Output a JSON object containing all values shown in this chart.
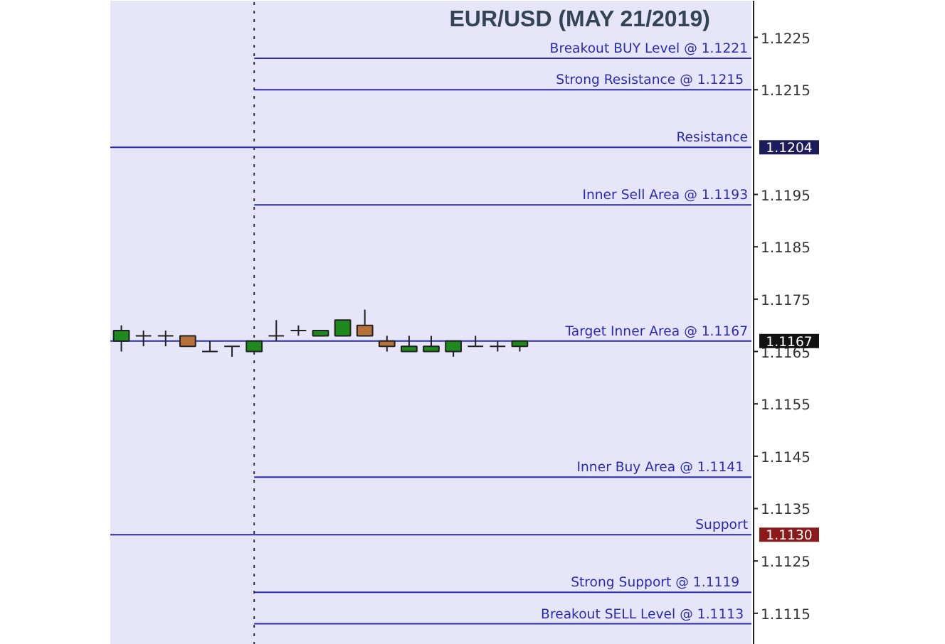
{
  "chart_data": {
    "type": "candlestick",
    "title": "EUR/USD (MAY 21/2019)",
    "categories": [
      null,
      null,
      null,
      null,
      null,
      null,
      null,
      null,
      null,
      null,
      null,
      null,
      null,
      null,
      null,
      null,
      null,
      null,
      null,
      null,
      null,
      null,
      null,
      null,
      null,
      null,
      null,
      null,
      null
    ],
    "ohlc": [
      [
        1.1167,
        1.117,
        1.1165,
        1.1169
      ],
      [
        1.1168,
        1.1169,
        1.1166,
        1.1168
      ],
      [
        1.1168,
        1.1169,
        1.1166,
        1.1168
      ],
      [
        1.1168,
        1.1168,
        1.1166,
        1.1166
      ],
      [
        1.1165,
        1.1167,
        1.1165,
        1.1165
      ],
      [
        1.1166,
        1.1166,
        1.1164,
        1.1166
      ],
      [
        1.1165,
        1.1167,
        1.1165,
        1.1167
      ],
      [
        1.1168,
        1.1171,
        1.1167,
        1.1168
      ],
      [
        1.1169,
        1.117,
        1.1168,
        1.1169
      ],
      [
        1.1168,
        1.1169,
        1.1168,
        1.1169
      ],
      [
        1.1168,
        1.1171,
        1.1168,
        1.1171
      ],
      [
        1.117,
        1.1173,
        1.1168,
        1.1168
      ],
      [
        1.1167,
        1.1168,
        1.1165,
        1.1166
      ],
      [
        1.1165,
        1.1168,
        1.1165,
        1.1166
      ],
      [
        1.1165,
        1.1168,
        1.1165,
        1.1166
      ],
      [
        1.1165,
        1.1167,
        1.1164,
        1.1167
      ],
      [
        1.1166,
        1.1168,
        1.1166,
        1.1166
      ],
      [
        1.1166,
        1.1167,
        1.1165,
        1.1166
      ],
      [
        1.1166,
        1.1167,
        1.1165,
        1.1167
      ],
      null,
      null,
      null,
      null,
      null,
      null,
      null,
      null,
      null,
      null
    ],
    "colors": [
      "#1e8a1e",
      "#222222",
      "#222222",
      "#b8703a",
      "#222222",
      "#222222",
      "#1e8a1e",
      "#222222",
      "#222222",
      "#1e8a1e",
      "#1e8a1e",
      "#b8703a",
      "#b8703a",
      "#1e8a1e",
      "#1e8a1e",
      "#1e8a1e",
      "#222222",
      "#222222",
      "#1e8a1e",
      null,
      null,
      null,
      null,
      null,
      null,
      null,
      null,
      null,
      null
    ],
    "ylim": [
      1.1109,
      1.1232
    ],
    "yticks": [
      1.1115,
      1.1125,
      {
        "value": 1.113,
        "label": "1.1130"
      },
      1.1135,
      1.1145,
      1.1155,
      1.1165,
      {
        "value": 1.1167,
        "label": "1.1167"
      },
      1.1175,
      1.1185,
      1.1195,
      {
        "value": 1.1204,
        "label": "1.1204"
      },
      1.1215,
      1.1225
    ],
    "tick_labels": "y",
    "ref_lines": [
      {
        "axis": "y",
        "value": 1.1221,
        "label": "Breakout BUY Level @ 1.1221",
        "color": "#2b2bb0"
      },
      {
        "axis": "y",
        "value": 1.1215,
        "label": "Strong Resistance @  1.1215",
        "color": "#2b2bb0"
      },
      {
        "axis": "y",
        "value": 1.1204,
        "label": "Resistance",
        "color": "#2b2bb0"
      },
      {
        "axis": "y",
        "value": 1.1193,
        "label": "Inner Sell Area @ 1.1193",
        "color": "#2b2bb0"
      },
      {
        "axis": "y",
        "value": 1.1167,
        "label": "Target Inner Area @ 1.1167",
        "color": "#2b2bb0"
      },
      {
        "axis": "y",
        "value": 1.1141,
        "label": "Inner Buy Area  @ 1.1141",
        "color": "#2b2bb0"
      },
      {
        "axis": "y",
        "value": 1.113,
        "label": "Support",
        "color": "#2b2bb0"
      },
      {
        "axis": "y",
        "value": 1.1119,
        "label": "Strong Support  @  1.1119",
        "color": "#2b2bb0"
      },
      {
        "axis": "y",
        "value": 1.1113,
        "label": "Breakout SELL Level  @ 1.1113",
        "color": "#2b2bb0"
      }
    ]
  }
}
